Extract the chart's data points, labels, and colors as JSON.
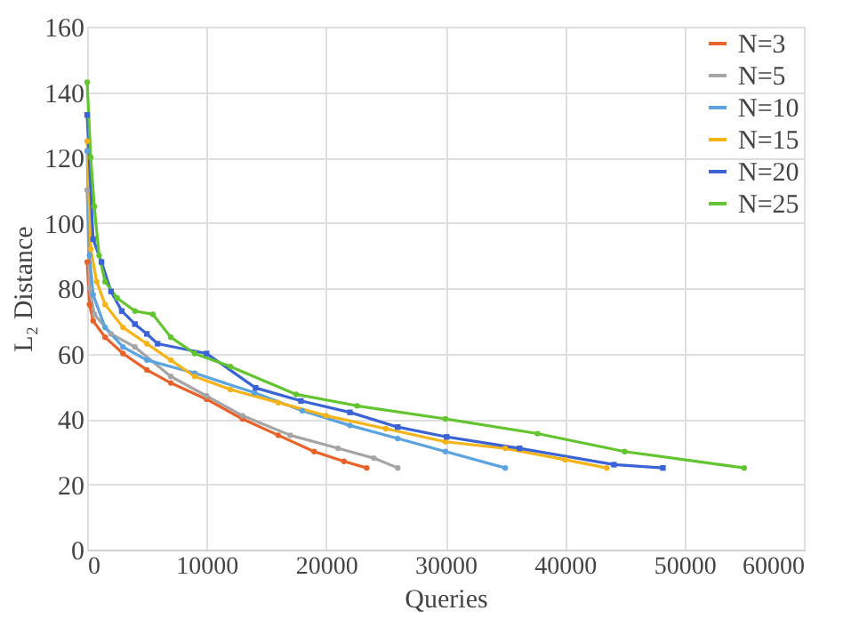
{
  "chart_data": {
    "type": "line",
    "xlabel": "Queries",
    "ylabel": "L₂ Distance",
    "xlim": [
      0,
      60000
    ],
    "xticks": [
      0,
      10000,
      20000,
      30000,
      40000,
      50000,
      60000
    ],
    "ylim": [
      0,
      160
    ],
    "yticks": [
      0,
      20,
      40,
      60,
      80,
      100,
      120,
      140,
      160
    ],
    "grid": true,
    "legend": "top right",
    "marker": "circle",
    "line_style": "solid",
    "series": [
      {
        "name": "N=3",
        "color": "#e8622a",
        "x": [
          0,
          200,
          500,
          1500,
          3000,
          5000,
          7000,
          10000,
          13000,
          16000,
          19000,
          21500,
          23400
        ],
        "values": [
          88,
          75,
          70,
          65,
          60,
          55,
          51,
          46,
          40,
          35,
          30,
          27,
          25
        ]
      },
      {
        "name": "N=5",
        "color": "#a5a5a5",
        "x": [
          0,
          200,
          600,
          2000,
          4000,
          7000,
          10000,
          13000,
          17000,
          21000,
          24000,
          26000
        ],
        "values": [
          110,
          80,
          72,
          66,
          62,
          53,
          47,
          41,
          35,
          31,
          28,
          25
        ]
      },
      {
        "name": "N=10",
        "color": "#5ba3e0",
        "x": [
          0,
          200,
          500,
          1500,
          3000,
          5000,
          9000,
          14000,
          18000,
          22000,
          26000,
          30000,
          35000
        ],
        "values": [
          122,
          90,
          78,
          68,
          62,
          58,
          54,
          48,
          42.5,
          38,
          34,
          30,
          25
        ]
      },
      {
        "name": "N=15",
        "color": "#f5b316",
        "x": [
          0,
          300,
          800,
          1500,
          3000,
          5000,
          7000,
          9000,
          12000,
          16000,
          20000,
          25000,
          30000,
          35000,
          40000,
          43500
        ],
        "values": [
          125,
          92,
          82,
          75,
          68,
          63,
          58,
          53,
          49,
          45,
          41,
          37,
          33,
          31,
          27.5,
          25
        ]
      },
      {
        "name": "N=20",
        "color": "#3a63d6",
        "marker": "square",
        "x": [
          0,
          500,
          1200,
          2000,
          2900,
          4000,
          5000,
          5900,
          10000,
          14100,
          17900,
          22000,
          26000,
          30100,
          36200,
          44100,
          48200
        ],
        "values": [
          133,
          95,
          88,
          79,
          73,
          69,
          66,
          63,
          60,
          49.5,
          45.5,
          42,
          37.5,
          34.5,
          31,
          26,
          25
        ]
      },
      {
        "name": "N=25",
        "color": "#62c42e",
        "x": [
          0,
          300,
          600,
          1000,
          1500,
          2500,
          4000,
          5500,
          7000,
          9000,
          12000,
          17500,
          22600,
          30000,
          37700,
          45000,
          55000
        ],
        "values": [
          143,
          120,
          105,
          90,
          82,
          77,
          73,
          72,
          65,
          60,
          56,
          47.5,
          44,
          40,
          35.5,
          30,
          25
        ]
      }
    ]
  }
}
